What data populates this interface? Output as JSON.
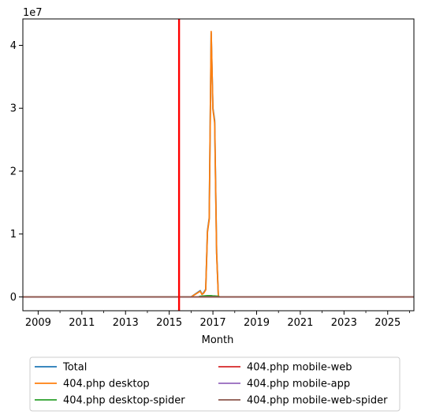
{
  "chart_data": {
    "type": "line",
    "title": "",
    "xlabel": "Month",
    "ylabel": "",
    "y_offset_text": "1e7",
    "xlim": [
      2008.3,
      2026.2
    ],
    "ylim": [
      -2200000,
      44200000
    ],
    "xticks": [
      2009,
      2011,
      2013,
      2015,
      2017,
      2019,
      2021,
      2023,
      2025
    ],
    "xtick_labels": [
      "2009",
      "2011",
      "2013",
      "2015",
      "2017",
      "2019",
      "2021",
      "2023",
      "2025"
    ],
    "yticks": [
      0,
      10000000,
      20000000,
      30000000,
      40000000
    ],
    "ytick_labels": [
      "0",
      "1",
      "2",
      "3",
      "4"
    ],
    "grid": false,
    "legend_placement": "below plot, two columns",
    "vline": {
      "x": 2015.45,
      "color": "#ff0000"
    },
    "series": [
      {
        "name": "Total",
        "color": "#1f77b4",
        "x": [
          2008.3,
          2016.0,
          2016.42,
          2016.5,
          2016.58,
          2016.67,
          2016.75,
          2016.83,
          2016.92,
          2017.0,
          2017.08,
          2017.17,
          2017.25,
          2017.33,
          2026.2
        ],
        "y": [
          0,
          0,
          1000000,
          400000,
          700000,
          1200000,
          10500000,
          12500000,
          42000000,
          30000000,
          28000000,
          7000000,
          0,
          0,
          0
        ]
      },
      {
        "name": "404.php desktop",
        "color": "#ff7f0e",
        "x": [
          2008.3,
          2016.0,
          2016.42,
          2016.5,
          2016.58,
          2016.67,
          2016.75,
          2016.83,
          2016.92,
          2017.0,
          2017.08,
          2017.17,
          2017.25,
          2017.33,
          2026.2
        ],
        "y": [
          0,
          0,
          900000,
          400000,
          600000,
          1100000,
          10300000,
          12300000,
          42200000,
          29800000,
          27700000,
          6900000,
          0,
          0,
          0
        ]
      },
      {
        "name": "404.php desktop-spider",
        "color": "#2ca02c",
        "x": [
          2008.3,
          2016.33,
          2016.42,
          2016.58,
          2016.75,
          2016.92,
          2017.0,
          2017.08,
          2017.25,
          2017.33,
          2026.2
        ],
        "y": [
          0,
          0,
          100000,
          150000,
          200000,
          200000,
          150000,
          150000,
          100000,
          0,
          0
        ]
      },
      {
        "name": "404.php mobile-web",
        "color": "#d62728",
        "x": [
          2008.3,
          2026.2
        ],
        "y": [
          0,
          0
        ]
      },
      {
        "name": "404.php mobile-app",
        "color": "#9467bd",
        "x": [
          2008.3,
          2026.2
        ],
        "y": [
          0,
          0
        ]
      },
      {
        "name": "404.php mobile-web-spider",
        "color": "#8c564b",
        "x": [
          2008.3,
          2026.2
        ],
        "y": [
          0,
          0
        ]
      }
    ]
  }
}
